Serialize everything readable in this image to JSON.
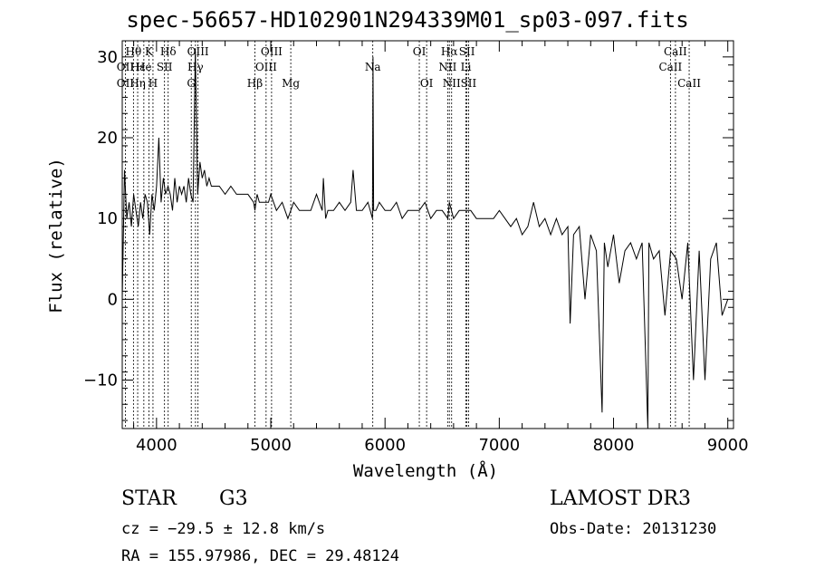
{
  "chart_data": {
    "type": "line",
    "title": "spec-56657-HD102901N294339M01_sp03-097.fits",
    "xlabel": "Wavelength (Å)",
    "ylabel": "Flux (relative)",
    "xlim": [
      3700,
      9050
    ],
    "ylim": [
      -16,
      32
    ],
    "x_ticks": [
      4000,
      5000,
      6000,
      7000,
      8000,
      9000
    ],
    "y_ticks": [
      -10,
      0,
      10,
      20,
      30
    ],
    "grid": false,
    "line_color": "#000000",
    "series": [
      {
        "x": [
          3700,
          3720,
          3740,
          3760,
          3780,
          3800,
          3820,
          3840,
          3860,
          3880,
          3900,
          3920,
          3940,
          3960,
          3980,
          4000,
          4020,
          4040,
          4060,
          4080,
          4100,
          4120,
          4140,
          4160,
          4180,
          4200,
          4220,
          4240,
          4260,
          4280,
          4300,
          4320,
          4340,
          4360,
          4380,
          4400,
          4420,
          4440,
          4460,
          4480,
          4500,
          4550,
          4600,
          4650,
          4700,
          4750,
          4800,
          4850,
          4861,
          4880,
          4900,
          4920,
          4950,
          4980,
          5000,
          5050,
          5100,
          5150,
          5200,
          5250,
          5300,
          5350,
          5400,
          5450,
          5460,
          5480,
          5500,
          5550,
          5600,
          5650,
          5700,
          5720,
          5750,
          5800,
          5850,
          5890,
          5895,
          5900,
          5920,
          5950,
          6000,
          6050,
          6100,
          6150,
          6200,
          6250,
          6300,
          6350,
          6400,
          6450,
          6500,
          6550,
          6563,
          6600,
          6650,
          6700,
          6750,
          6800,
          6850,
          6900,
          6950,
          7000,
          7050,
          7100,
          7150,
          7200,
          7250,
          7300,
          7350,
          7400,
          7450,
          7500,
          7550,
          7600,
          7620,
          7650,
          7700,
          7750,
          7800,
          7850,
          7900,
          7920,
          7950,
          8000,
          8050,
          8100,
          8150,
          8200,
          8250,
          8300,
          8310,
          8350,
          8400,
          8450,
          8500,
          8550,
          8600,
          8650,
          8700,
          8750,
          8800,
          8850,
          8900,
          8950,
          9000
        ],
        "values": [
          0,
          16,
          10,
          12,
          9,
          13,
          11,
          9,
          12,
          10,
          13,
          12,
          8,
          13,
          11,
          14,
          20,
          12,
          15,
          13,
          14,
          13,
          11,
          15,
          12,
          14,
          13,
          14,
          12,
          15,
          13,
          12,
          31,
          13,
          17,
          15,
          16,
          14,
          15,
          14,
          14,
          14,
          13,
          14,
          13,
          13,
          13,
          12,
          11,
          13,
          12,
          12,
          12,
          12,
          13,
          11,
          12,
          10,
          12,
          11,
          11,
          11,
          13,
          11,
          15,
          10,
          11,
          11,
          12,
          11,
          12,
          16,
          11,
          11,
          12,
          10,
          30,
          11,
          11,
          12,
          11,
          11,
          12,
          10,
          11,
          11,
          11,
          12,
          10,
          11,
          11,
          10,
          12,
          10,
          11,
          11,
          11,
          10,
          10,
          10,
          10,
          11,
          10,
          9,
          10,
          8,
          9,
          12,
          9,
          10,
          8,
          10,
          8,
          9,
          -3,
          8,
          9,
          0,
          8,
          6,
          -14,
          7,
          4,
          8,
          2,
          6,
          7,
          5,
          7,
          -16,
          7,
          5,
          6,
          -2,
          6,
          5,
          0,
          7,
          -10,
          6,
          -10,
          5,
          7,
          -2,
          0
        ]
      }
    ],
    "line_ids": [
      {
        "label": "Hθ",
        "x": 3798,
        "row": 1
      },
      {
        "label": "OII",
        "x": 3727,
        "row": 2
      },
      {
        "label": "OII",
        "x": 3727,
        "row": 3
      },
      {
        "label": "Hε",
        "x": 3835,
        "row": 2
      },
      {
        "label": "Hη",
        "x": 3835,
        "row": 3
      },
      {
        "label": "K",
        "x": 3934,
        "row": 1
      },
      {
        "label": "He",
        "x": 3889,
        "row": 2
      },
      {
        "label": "H",
        "x": 3969,
        "row": 3
      },
      {
        "label": "Hδ",
        "x": 4102,
        "row": 1
      },
      {
        "label": "SII",
        "x": 4070,
        "row": 2
      },
      {
        "label": "OIII",
        "x": 4363,
        "row": 1
      },
      {
        "label": "Hγ",
        "x": 4341,
        "row": 2
      },
      {
        "label": "G",
        "x": 4304,
        "row": 3
      },
      {
        "label": "OIII",
        "x": 5007,
        "row": 1
      },
      {
        "label": "OIII",
        "x": 4959,
        "row": 2
      },
      {
        "label": "Hβ",
        "x": 4861,
        "row": 3
      },
      {
        "label": "Mg",
        "x": 5175,
        "row": 3
      },
      {
        "label": "Na",
        "x": 5893,
        "row": 2
      },
      {
        "label": "OI",
        "x": 6300,
        "row": 1
      },
      {
        "label": "OI",
        "x": 6364,
        "row": 3
      },
      {
        "label": "Hα",
        "x": 6563,
        "row": 1
      },
      {
        "label": "NII",
        "x": 6548,
        "row": 2
      },
      {
        "label": "NII",
        "x": 6583,
        "row": 3
      },
      {
        "label": "SII",
        "x": 6717,
        "row": 1
      },
      {
        "label": "Li",
        "x": 6708,
        "row": 2
      },
      {
        "label": "SII",
        "x": 6731,
        "row": 3
      },
      {
        "label": "CaII",
        "x": 8542,
        "row": 1
      },
      {
        "label": "CaII",
        "x": 8498,
        "row": 2
      },
      {
        "label": "CaII",
        "x": 8662,
        "row": 3
      }
    ]
  },
  "info": {
    "object_class": "STAR",
    "subclass": "G3",
    "survey": "LAMOST DR3",
    "cz": "cz = −29.5 ± 12.8 km/s",
    "obs_date": "Obs-Date: 20131230",
    "coords": "RA = 155.97986, DEC =  29.48124"
  }
}
